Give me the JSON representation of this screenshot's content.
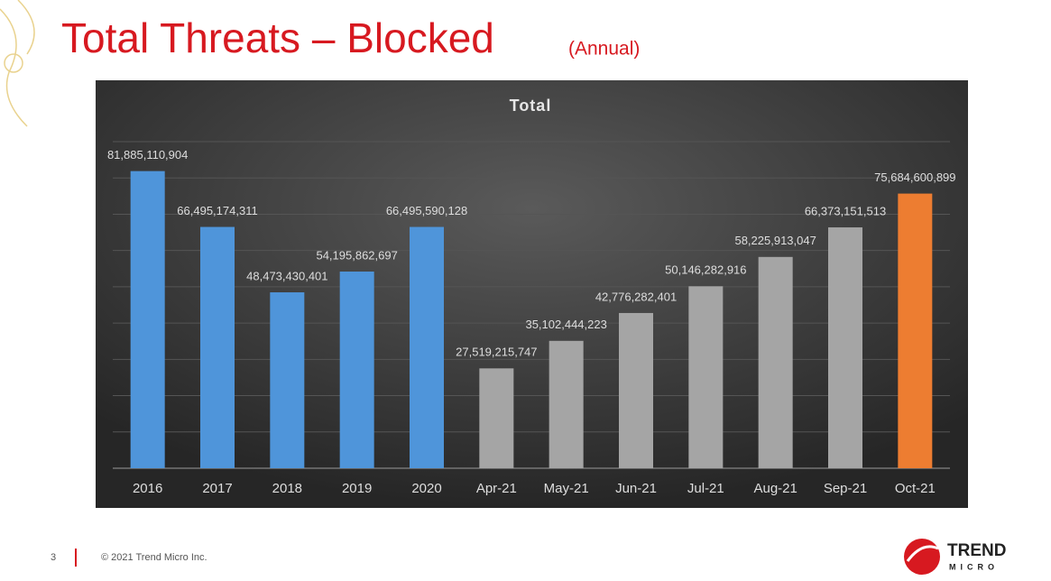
{
  "slide": {
    "title": "Total Threats – Blocked",
    "subtitle": "(Annual)",
    "page": "3",
    "copyright": "© 2021 Trend Micro Inc.",
    "logo_top": "TREND",
    "logo_bottom": "MICRO"
  },
  "chart_data": {
    "type": "bar",
    "title": "Total",
    "categories": [
      "2016",
      "2017",
      "2018",
      "2019",
      "2020",
      "Apr-21",
      "May-21",
      "Jun-21",
      "Jul-21",
      "Aug-21",
      "Sep-21",
      "Oct-21"
    ],
    "values": [
      81885110904,
      66495174311,
      48473430401,
      54195862697,
      66495590128,
      27519215747,
      35102444223,
      42776282401,
      50146282916,
      58225913047,
      66373151513,
      75684600899
    ],
    "value_labels": [
      "81,885,110,904",
      "66,495,174,311",
      "48,473,430,401",
      "54,195,862,697",
      "66,495,590,128",
      "27,519,215,747",
      "35,102,444,223",
      "42,776,282,401",
      "50,146,282,916",
      "58,225,913,047",
      "66,373,151,513",
      "75,684,600,899"
    ],
    "colors": [
      "#4f95da",
      "#4f95da",
      "#4f95da",
      "#4f95da",
      "#4f95da",
      "#a5a5a5",
      "#a5a5a5",
      "#a5a5a5",
      "#a5a5a5",
      "#a5a5a5",
      "#a5a5a5",
      "#ed7d31"
    ],
    "ylim": [
      0,
      90000000000
    ],
    "yticks": [
      0,
      10000000000,
      20000000000,
      30000000000,
      40000000000,
      50000000000,
      60000000000,
      70000000000,
      80000000000,
      90000000000
    ],
    "grid": true
  }
}
